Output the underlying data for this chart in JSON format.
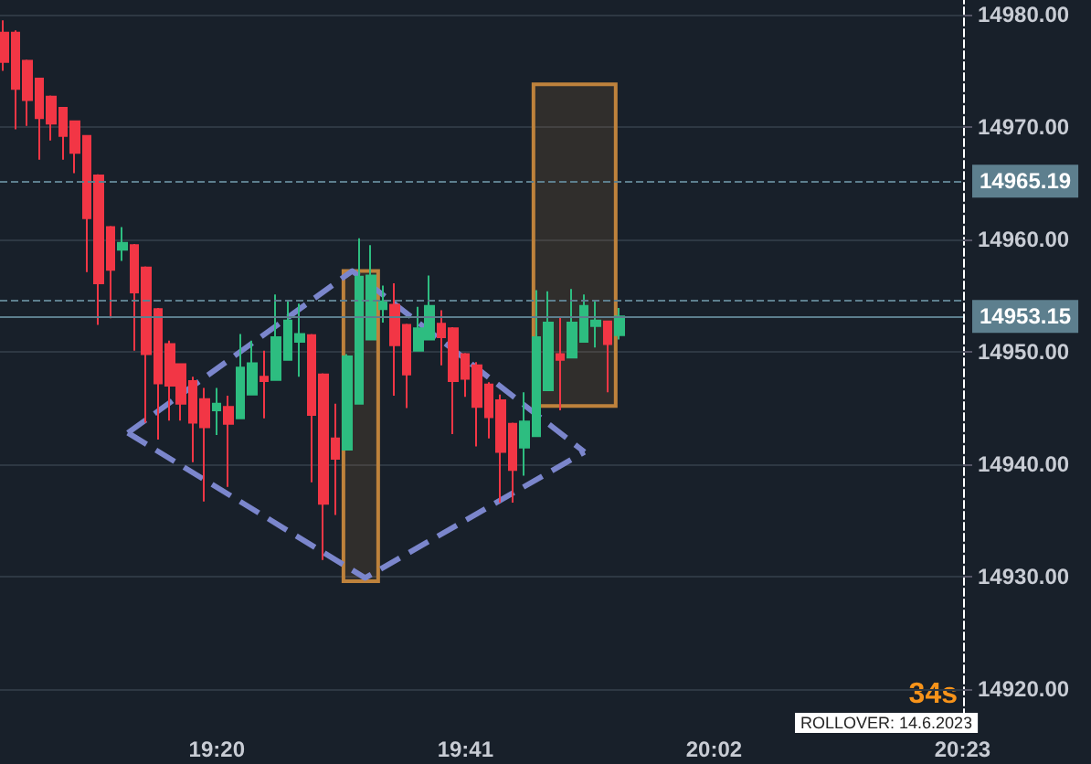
{
  "chart_data": {
    "type": "candlestick",
    "x": [
      19.0333,
      19.05,
      19.0667,
      19.0833,
      19.1,
      19.1167,
      19.1333,
      19.15,
      19.1667,
      19.1833,
      19.2,
      19.2167,
      19.2333,
      19.25,
      19.2667,
      19.2833,
      19.3,
      19.3167,
      19.3333,
      19.35,
      19.3667,
      19.3833,
      19.4,
      19.4167,
      19.4333,
      19.45,
      19.4667,
      19.4833,
      19.5,
      19.5167,
      19.5333,
      19.55,
      19.5667,
      19.5833,
      19.6,
      19.6167,
      19.6333,
      19.65,
      19.6667,
      19.6833,
      19.7,
      19.7167,
      19.7333,
      19.75,
      19.7667,
      19.7833,
      19.8,
      19.8167,
      19.8333,
      19.85,
      19.8667,
      19.8833,
      19.9
    ],
    "ohlc": [
      [
        14978.4,
        14979.5,
        14975.0,
        14975.8
      ],
      [
        14978.4,
        14978.6,
        14969.8,
        14973.4
      ],
      [
        14975.9,
        14976.0,
        14970.1,
        14972.4
      ],
      [
        14974.3,
        14974.4,
        14967.1,
        14970.8
      ],
      [
        14972.7,
        14972.8,
        14968.8,
        14970.3
      ],
      [
        14971.7,
        14971.8,
        14967.1,
        14969.2
      ],
      [
        14970.5,
        14970.6,
        14965.9,
        14967.7
      ],
      [
        14969.2,
        14969.3,
        14957.1,
        14961.9
      ],
      [
        14965.7,
        14965.8,
        14952.4,
        14956.1
      ],
      [
        14961.1,
        14961.2,
        14953.0,
        14957.3
      ],
      [
        14959.1,
        14961.1,
        14958.1,
        14959.7
      ],
      [
        14959.5,
        14959.6,
        14950.1,
        14955.3
      ],
      [
        14957.5,
        14957.6,
        14943.7,
        14949.8
      ],
      [
        14953.8,
        14953.9,
        14942.2,
        14947.2
      ],
      [
        14950.7,
        14951.0,
        14943.9,
        14947.0
      ],
      [
        14948.9,
        14949.0,
        14943.9,
        14945.4
      ],
      [
        14947.4,
        14947.8,
        14940.2,
        14943.7
      ],
      [
        14945.8,
        14946.8,
        14936.7,
        14943.3
      ],
      [
        14944.8,
        14946.8,
        14942.6,
        14945.4
      ],
      [
        14945.1,
        14946.1,
        14938.0,
        14943.6
      ],
      [
        14944.1,
        14951.6,
        14944.1,
        14948.6
      ],
      [
        14946.2,
        14951.0,
        14946.2,
        14949.0
      ],
      [
        14947.8,
        14950.1,
        14944.1,
        14947.4
      ],
      [
        14947.5,
        14955.1,
        14947.5,
        14951.3
      ],
      [
        14949.3,
        14954.6,
        14949.3,
        14952.8
      ],
      [
        14950.9,
        14954.3,
        14947.8,
        14951.6
      ],
      [
        14951.5,
        14951.6,
        14938.4,
        14944.4
      ],
      [
        14948.0,
        14948.1,
        14931.5,
        14936.5
      ],
      [
        14942.3,
        14945.4,
        14935.5,
        14940.5
      ],
      [
        14941.3,
        14949.8,
        14941.3,
        14949.6
      ],
      [
        14945.4,
        14960.1,
        14945.4,
        14956.7
      ],
      [
        14951.1,
        14959.5,
        14951.1,
        14956.8
      ],
      [
        14953.8,
        14955.9,
        14952.6,
        14954.5
      ],
      [
        14954.2,
        14956.1,
        14946.1,
        14950.6
      ],
      [
        14952.4,
        14952.5,
        14945.0,
        14948.0
      ],
      [
        14950.1,
        14954.0,
        14950.1,
        14952.1
      ],
      [
        14951.1,
        14956.8,
        14951.1,
        14954.1
      ],
      [
        14952.5,
        14953.7,
        14948.8,
        14951.3
      ],
      [
        14952.1,
        14952.2,
        14942.7,
        14947.4
      ],
      [
        14949.8,
        14949.9,
        14946.0,
        14947.6
      ],
      [
        14948.8,
        14949.1,
        14941.6,
        14945.1
      ],
      [
        14947.1,
        14947.3,
        14942.3,
        14944.2
      ],
      [
        14945.7,
        14946.2,
        14936.6,
        14941.1
      ],
      [
        14943.6,
        14943.7,
        14936.6,
        14939.5
      ],
      [
        14941.5,
        14946.4,
        14939.0,
        14943.8
      ],
      [
        14942.5,
        14955.5,
        14942.5,
        14951.3
      ],
      [
        14946.6,
        14955.4,
        14946.6,
        14952.6
      ],
      [
        14949.8,
        14953.1,
        14944.8,
        14949.3
      ],
      [
        14949.5,
        14955.6,
        14949.5,
        14952.6
      ],
      [
        14950.9,
        14955.1,
        14950.9,
        14954.1
      ],
      [
        14952.3,
        14954.6,
        14950.4,
        14952.8
      ],
      [
        14952.7,
        14952.8,
        14946.4,
        14950.7
      ],
      [
        14951.5,
        14953.9,
        14951.1,
        14953.15
      ]
    ],
    "xlim": [
      19.028,
      20.384
    ],
    "xticks": [
      {
        "value": 19.3333,
        "label": "19:20"
      },
      {
        "value": 19.6833,
        "label": "19:41"
      },
      {
        "value": 20.0333,
        "label": "20:02"
      },
      {
        "value": 20.3833,
        "label": "20:23"
      }
    ],
    "ylim": [
      14916.6,
      14981.3
    ],
    "yticks": [
      {
        "value": 14920,
        "label": "14920.00"
      },
      {
        "value": 14930,
        "label": "14930.00"
      },
      {
        "value": 14940,
        "label": "14940.00"
      },
      {
        "value": 14950,
        "label": "14950.00"
      },
      {
        "value": 14960,
        "label": "14960.00"
      },
      {
        "value": 14970,
        "label": "14970.00"
      },
      {
        "value": 14980,
        "label": "14980.00"
      }
    ],
    "grid": "y",
    "ref_lines": [
      {
        "axis": "y",
        "value": 14965.19,
        "label": "14965.19",
        "color": "#5d7f8e",
        "line_style": "dashed"
      },
      {
        "axis": "y",
        "value": 14954.58,
        "color": "#5d7f8e",
        "line_style": "dashed"
      },
      {
        "axis": "y",
        "value": 14953.15,
        "label": "14953.15",
        "color": "#5d7f8e",
        "line_style": "solid"
      }
    ],
    "series": [
      {
        "type": "line",
        "color": "#7b86cc",
        "line_style": "dashed",
        "marker": "none",
        "x": [
          19.208,
          19.524,
          19.851
        ],
        "values": [
          14942.8,
          14957.2,
          14941.1
        ]
      },
      {
        "type": "line",
        "color": "#7b86cc",
        "line_style": "dashed",
        "marker": "none",
        "x": [
          19.208,
          19.542,
          19.851
        ],
        "values": [
          14942.8,
          14929.9,
          14941.1
        ]
      },
      {
        "type": "bar",
        "color": "#be823c",
        "x": [
          19.536,
          19.837
        ],
        "base": [
          14929.6,
          14945.2
        ],
        "values": [
          27.6,
          28.6
        ]
      }
    ],
    "annotations": [
      "34s",
      "ROLLOVER: 14.6.2023"
    ]
  }
}
